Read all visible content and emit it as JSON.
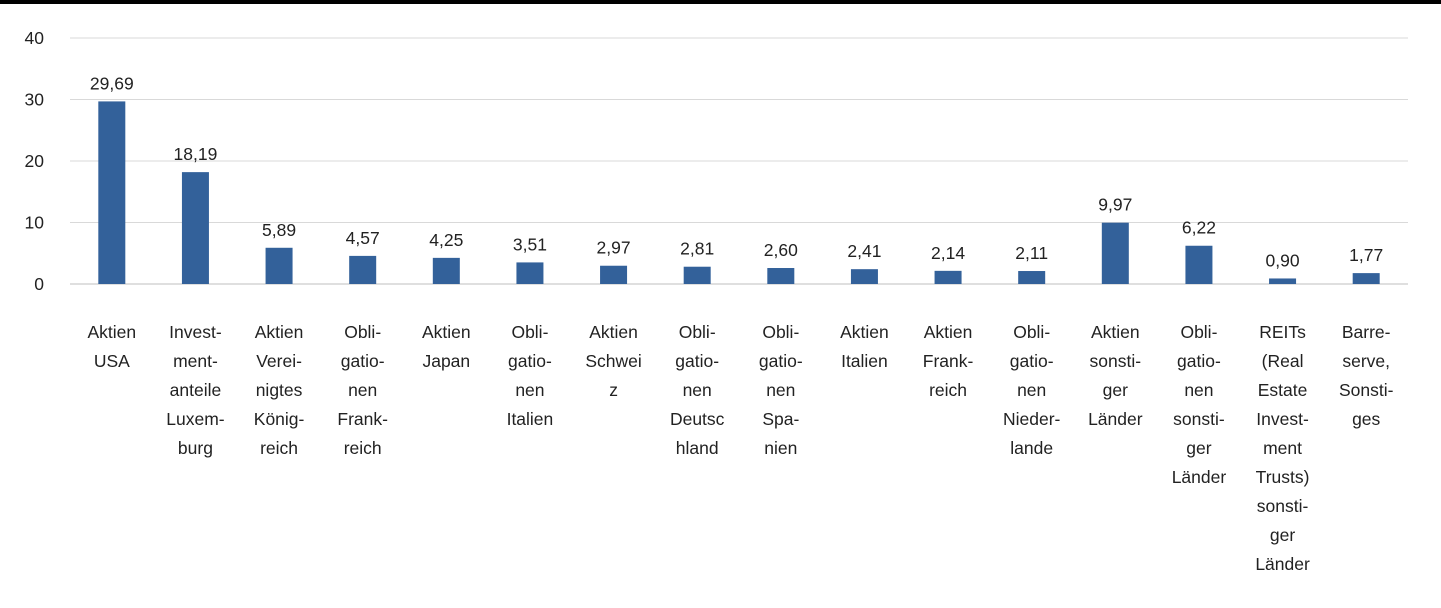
{
  "colors": {
    "bar": "#33619A",
    "grid": "#D9D9D9",
    "axis": "#BFBFBF",
    "text": "#222222",
    "top_rule": "#000000"
  },
  "chart_data": {
    "type": "bar",
    "title": "",
    "xlabel": "",
    "ylabel": "",
    "ylim": [
      0,
      40
    ],
    "yticks": [
      0,
      10,
      20,
      30,
      40
    ],
    "grid": true,
    "categories": [
      "Aktien\nUSA",
      "Invest-\nment-\nanteile\nLuxem-\nburg",
      "Aktien\nVerei-\nnigtes\nKönig-\nreich",
      "Obli-\ngatio-\nnen\nFrank-\nreich",
      "Aktien\nJapan",
      "Obli-\ngatio-\nnen\nItalien",
      "Aktien\nSchwei\nz",
      "Obli-\ngatio-\nnen\nDeutsc\nhland",
      "Obli-\ngatio-\nnen\nSpa-\nnien",
      "Aktien\nItalien",
      "Aktien\nFrank-\nreich",
      "Obli-\ngatio-\nnen\nNieder-\nlande",
      "Aktien\nsonsti-\nger\nLänder",
      "Obli-\ngatio-\nnen\nsonsti-\nger\nLänder",
      "REITs\n(Real\nEstate\nInvest-\nment\nTrusts)\nsonsti-\nger\nLänder",
      "Barre-\nserve,\nSonsti-\nges"
    ],
    "values": [
      29.69,
      18.19,
      5.89,
      4.57,
      4.25,
      3.51,
      2.97,
      2.81,
      2.6,
      2.41,
      2.14,
      2.11,
      9.97,
      6.22,
      0.9,
      1.77
    ],
    "data_labels": [
      "29,69",
      "18,19",
      "5,89",
      "4,57",
      "4,25",
      "3,51",
      "2,97",
      "2,81",
      "2,60",
      "2,41",
      "2,14",
      "2,11",
      "9,97",
      "6,22",
      "0,90",
      "1,77"
    ]
  }
}
